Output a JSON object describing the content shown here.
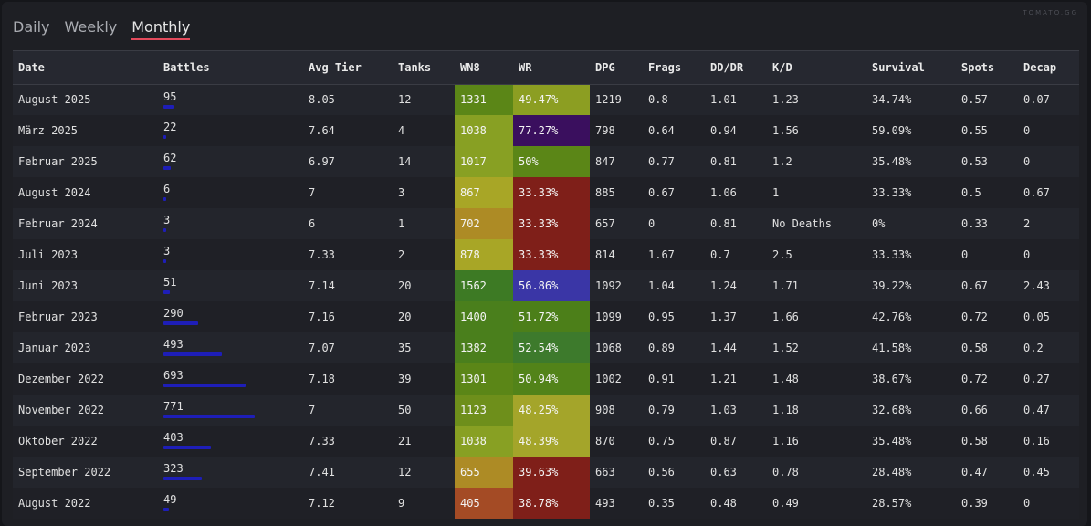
{
  "watermark": "TOMATO.GG",
  "tabs": [
    {
      "label": "Daily",
      "active": false
    },
    {
      "label": "Weekly",
      "active": false
    },
    {
      "label": "Monthly",
      "active": true
    }
  ],
  "columns": [
    "Date",
    "Battles",
    "Avg Tier",
    "Tanks",
    "WN8",
    "WR",
    "DPG",
    "Frags",
    "DD/DR",
    "K/D",
    "Survival",
    "Spots",
    "Decap"
  ],
  "max_battles": 771,
  "rows": [
    {
      "date": "August 2025",
      "battles": "95",
      "avg_tier": "8.05",
      "tanks": "12",
      "wn8": "1331",
      "wn8_color": "#5b8617",
      "wr": "49.47%",
      "wr_color": "#8c9e22",
      "dpg": "1219",
      "frags": "0.8",
      "dddr": "1.01",
      "kd": "1.23",
      "survival": "34.74%",
      "spots": "0.57",
      "decap": "0.07"
    },
    {
      "date": "März 2025",
      "battles": "22",
      "avg_tier": "7.64",
      "tanks": "4",
      "wn8": "1038",
      "wn8_color": "#88a023",
      "wr": "77.27%",
      "wr_color": "#3a0f5e",
      "dpg": "798",
      "frags": "0.64",
      "dddr": "0.94",
      "kd": "1.56",
      "survival": "59.09%",
      "spots": "0.55",
      "decap": "0"
    },
    {
      "date": "Februar 2025",
      "battles": "62",
      "avg_tier": "6.97",
      "tanks": "14",
      "wn8": "1017",
      "wn8_color": "#88a023",
      "wr": "50%",
      "wr_color": "#5b8617",
      "dpg": "847",
      "frags": "0.77",
      "dddr": "0.81",
      "kd": "1.2",
      "survival": "35.48%",
      "spots": "0.53",
      "decap": "0"
    },
    {
      "date": "August 2024",
      "battles": "6",
      "avg_tier": "7",
      "tanks": "3",
      "wn8": "867",
      "wn8_color": "#a8a626",
      "wr": "33.33%",
      "wr_color": "#7f1f19",
      "dpg": "885",
      "frags": "0.67",
      "dddr": "1.06",
      "kd": "1",
      "survival": "33.33%",
      "spots": "0.5",
      "decap": "0.67"
    },
    {
      "date": "Februar 2024",
      "battles": "3",
      "avg_tier": "6",
      "tanks": "1",
      "wn8": "702",
      "wn8_color": "#ad8b25",
      "wr": "33.33%",
      "wr_color": "#7f1f19",
      "dpg": "657",
      "frags": "0",
      "dddr": "0.81",
      "kd": "No Deaths",
      "survival": "0%",
      "spots": "0.33",
      "decap": "2"
    },
    {
      "date": "Juli 2023",
      "battles": "3",
      "avg_tier": "7.33",
      "tanks": "2",
      "wn8": "878",
      "wn8_color": "#a8a626",
      "wr": "33.33%",
      "wr_color": "#7f1f19",
      "dpg": "814",
      "frags": "1.67",
      "dddr": "0.7",
      "kd": "2.5",
      "survival": "33.33%",
      "spots": "0",
      "decap": "0"
    },
    {
      "date": "Juni 2023",
      "battles": "51",
      "avg_tier": "7.14",
      "tanks": "20",
      "wn8": "1562",
      "wn8_color": "#3d7a24",
      "wr": "56.86%",
      "wr_color": "#3a36a6",
      "dpg": "1092",
      "frags": "1.04",
      "dddr": "1.24",
      "kd": "1.71",
      "survival": "39.22%",
      "spots": "0.67",
      "decap": "2.43"
    },
    {
      "date": "Februar 2023",
      "battles": "290",
      "avg_tier": "7.16",
      "tanks": "20",
      "wn8": "1400",
      "wn8_color": "#4a7f1c",
      "wr": "51.72%",
      "wr_color": "#4c7f19",
      "dpg": "1099",
      "frags": "0.95",
      "dddr": "1.37",
      "kd": "1.66",
      "survival": "42.76%",
      "spots": "0.72",
      "decap": "0.05"
    },
    {
      "date": "Januar 2023",
      "battles": "493",
      "avg_tier": "7.07",
      "tanks": "35",
      "wn8": "1382",
      "wn8_color": "#4a7f1c",
      "wr": "52.54%",
      "wr_color": "#3d7a2c",
      "dpg": "1068",
      "frags": "0.89",
      "dddr": "1.44",
      "kd": "1.52",
      "survival": "41.58%",
      "spots": "0.58",
      "decap": "0.2"
    },
    {
      "date": "Dezember 2022",
      "battles": "693",
      "avg_tier": "7.18",
      "tanks": "39",
      "wn8": "1301",
      "wn8_color": "#5b8617",
      "wr": "50.94%",
      "wr_color": "#528319",
      "dpg": "1002",
      "frags": "0.91",
      "dddr": "1.21",
      "kd": "1.48",
      "survival": "38.67%",
      "spots": "0.72",
      "decap": "0.27"
    },
    {
      "date": "November 2022",
      "battles": "771",
      "avg_tier": "7",
      "tanks": "50",
      "wn8": "1123",
      "wn8_color": "#6e8f1b",
      "wr": "48.25%",
      "wr_color": "#a4a52a",
      "dpg": "908",
      "frags": "0.79",
      "dddr": "1.03",
      "kd": "1.18",
      "survival": "32.68%",
      "spots": "0.66",
      "decap": "0.47"
    },
    {
      "date": "Oktober 2022",
      "battles": "403",
      "avg_tier": "7.33",
      "tanks": "21",
      "wn8": "1038",
      "wn8_color": "#88a023",
      "wr": "48.39%",
      "wr_color": "#a4a52a",
      "dpg": "870",
      "frags": "0.75",
      "dddr": "0.87",
      "kd": "1.16",
      "survival": "35.48%",
      "spots": "0.58",
      "decap": "0.16"
    },
    {
      "date": "September 2022",
      "battles": "323",
      "avg_tier": "7.41",
      "tanks": "12",
      "wn8": "655",
      "wn8_color": "#ad8b25",
      "wr": "39.63%",
      "wr_color": "#7f1f19",
      "dpg": "663",
      "frags": "0.56",
      "dddr": "0.63",
      "kd": "0.78",
      "survival": "28.48%",
      "spots": "0.47",
      "decap": "0.45"
    },
    {
      "date": "August 2022",
      "battles": "49",
      "avg_tier": "7.12",
      "tanks": "9",
      "wn8": "405",
      "wn8_color": "#a44b25",
      "wr": "38.78%",
      "wr_color": "#7f1f19",
      "dpg": "493",
      "frags": "0.35",
      "dddr": "0.48",
      "kd": "0.49",
      "survival": "28.57%",
      "spots": "0.39",
      "decap": "0"
    }
  ]
}
